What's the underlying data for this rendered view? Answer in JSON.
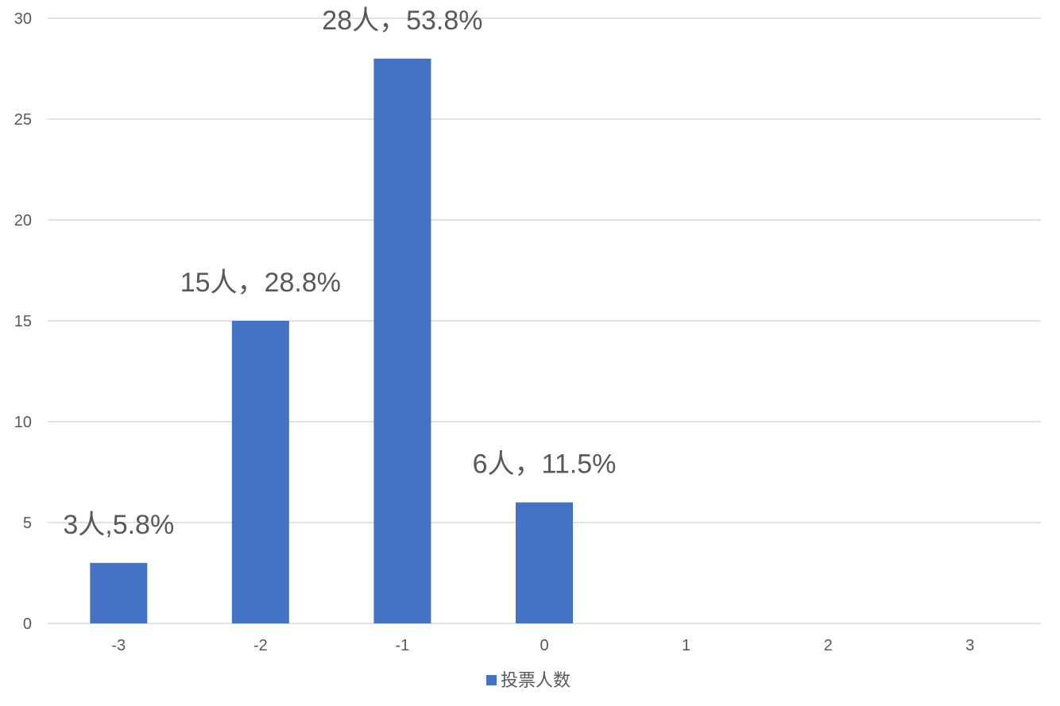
{
  "chart_data": {
    "type": "bar",
    "categories": [
      "-3",
      "-2",
      "-1",
      "0",
      "1",
      "2",
      "3"
    ],
    "series": [
      {
        "name": "投票人数",
        "values": [
          3,
          15,
          28,
          6,
          0,
          0,
          0
        ],
        "color": "#4472C4",
        "data_labels": [
          "3人,5.8%",
          "15人，28.8%",
          "28人，53.8%",
          "6人，11.5%",
          "",
          "",
          ""
        ]
      }
    ],
    "y_ticks": [
      "0",
      "5",
      "10",
      "15",
      "20",
      "25",
      "30"
    ],
    "ylim": [
      0,
      30
    ],
    "grid": true,
    "legend": "bottom",
    "title": "",
    "xlabel": "",
    "ylabel": ""
  }
}
